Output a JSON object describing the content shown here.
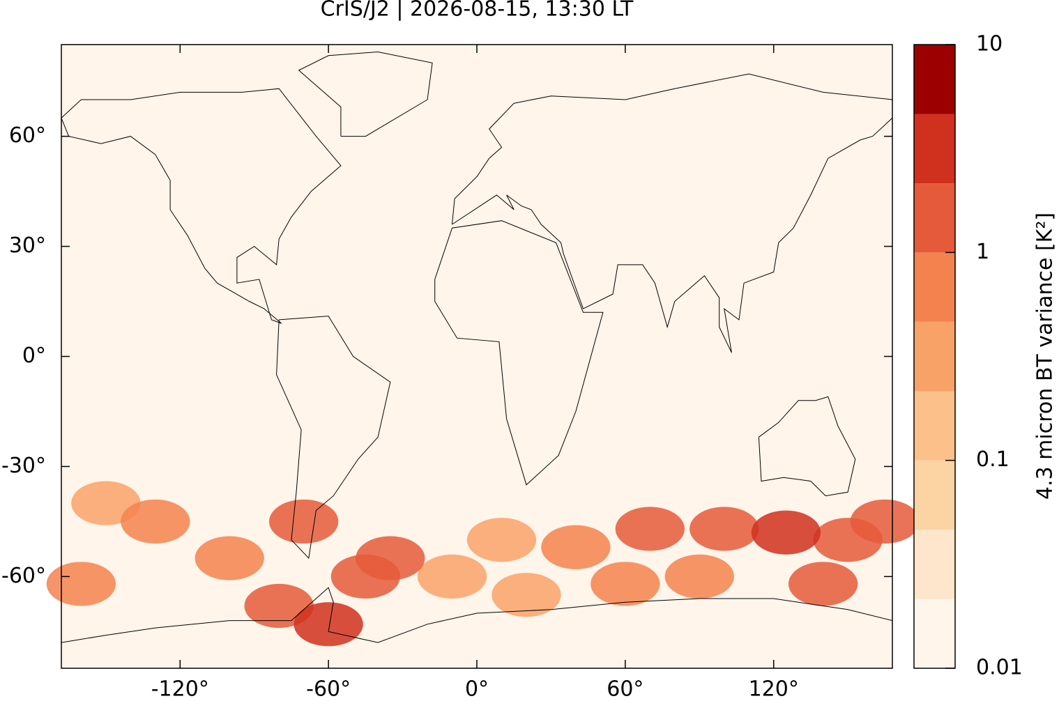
{
  "chart_data": {
    "type": "map",
    "title": "CrIS/J2 | 2026-08-15, 13:30 LT",
    "xlim": [
      -168,
      168
    ],
    "ylim": [
      -85,
      85
    ],
    "xticks": [
      {
        "value": -120,
        "label": "-120°"
      },
      {
        "value": -60,
        "label": "-60°"
      },
      {
        "value": 0,
        "label": "0°"
      },
      {
        "value": 60,
        "label": "60°"
      },
      {
        "value": 120,
        "label": "120°"
      }
    ],
    "yticks": [
      {
        "value": -60,
        "label": "-60°"
      },
      {
        "value": -30,
        "label": "-30°"
      },
      {
        "value": 0,
        "label": "0°"
      },
      {
        "value": 30,
        "label": "30°"
      },
      {
        "value": 60,
        "label": "60°"
      }
    ],
    "colorbar": {
      "label": "4.3 micron BT variance [K²]",
      "log": true,
      "lim": [
        0.01,
        10
      ],
      "ticks": [
        0.01,
        0.1,
        1,
        10
      ],
      "levels": [
        0.01,
        0.0215,
        0.0464,
        0.1,
        0.215,
        0.464,
        1,
        2.15,
        4.64,
        10
      ],
      "colors": [
        "#fff5eb",
        "#fde6cc",
        "#fcd3a2",
        "#fcc08a",
        "#f9a268",
        "#f4824f",
        "#e55a3b",
        "#d0301e",
        "#9c0000"
      ]
    },
    "field": {
      "lon": [
        -150,
        -10,
        20,
        10,
        -130,
        60,
        40,
        -100,
        90,
        -160,
        -80,
        -70,
        70,
        -35,
        100,
        150,
        165,
        -45,
        140,
        125,
        -60
      ],
      "lat": [
        -40,
        -60,
        -65,
        -50,
        -45,
        -62,
        -52,
        -55,
        -60,
        -62,
        -68,
        -45,
        -47,
        -55,
        -47,
        -50,
        -45,
        -60,
        -62,
        -48,
        -73
      ],
      "values": [
        0.3,
        0.4,
        0.3,
        0.4,
        0.6,
        0.5,
        0.6,
        0.8,
        0.8,
        0.8,
        1,
        1.2,
        1.2,
        1.5,
        1.5,
        1.8,
        1.5,
        2,
        2,
        2.5,
        3
      ]
    }
  }
}
